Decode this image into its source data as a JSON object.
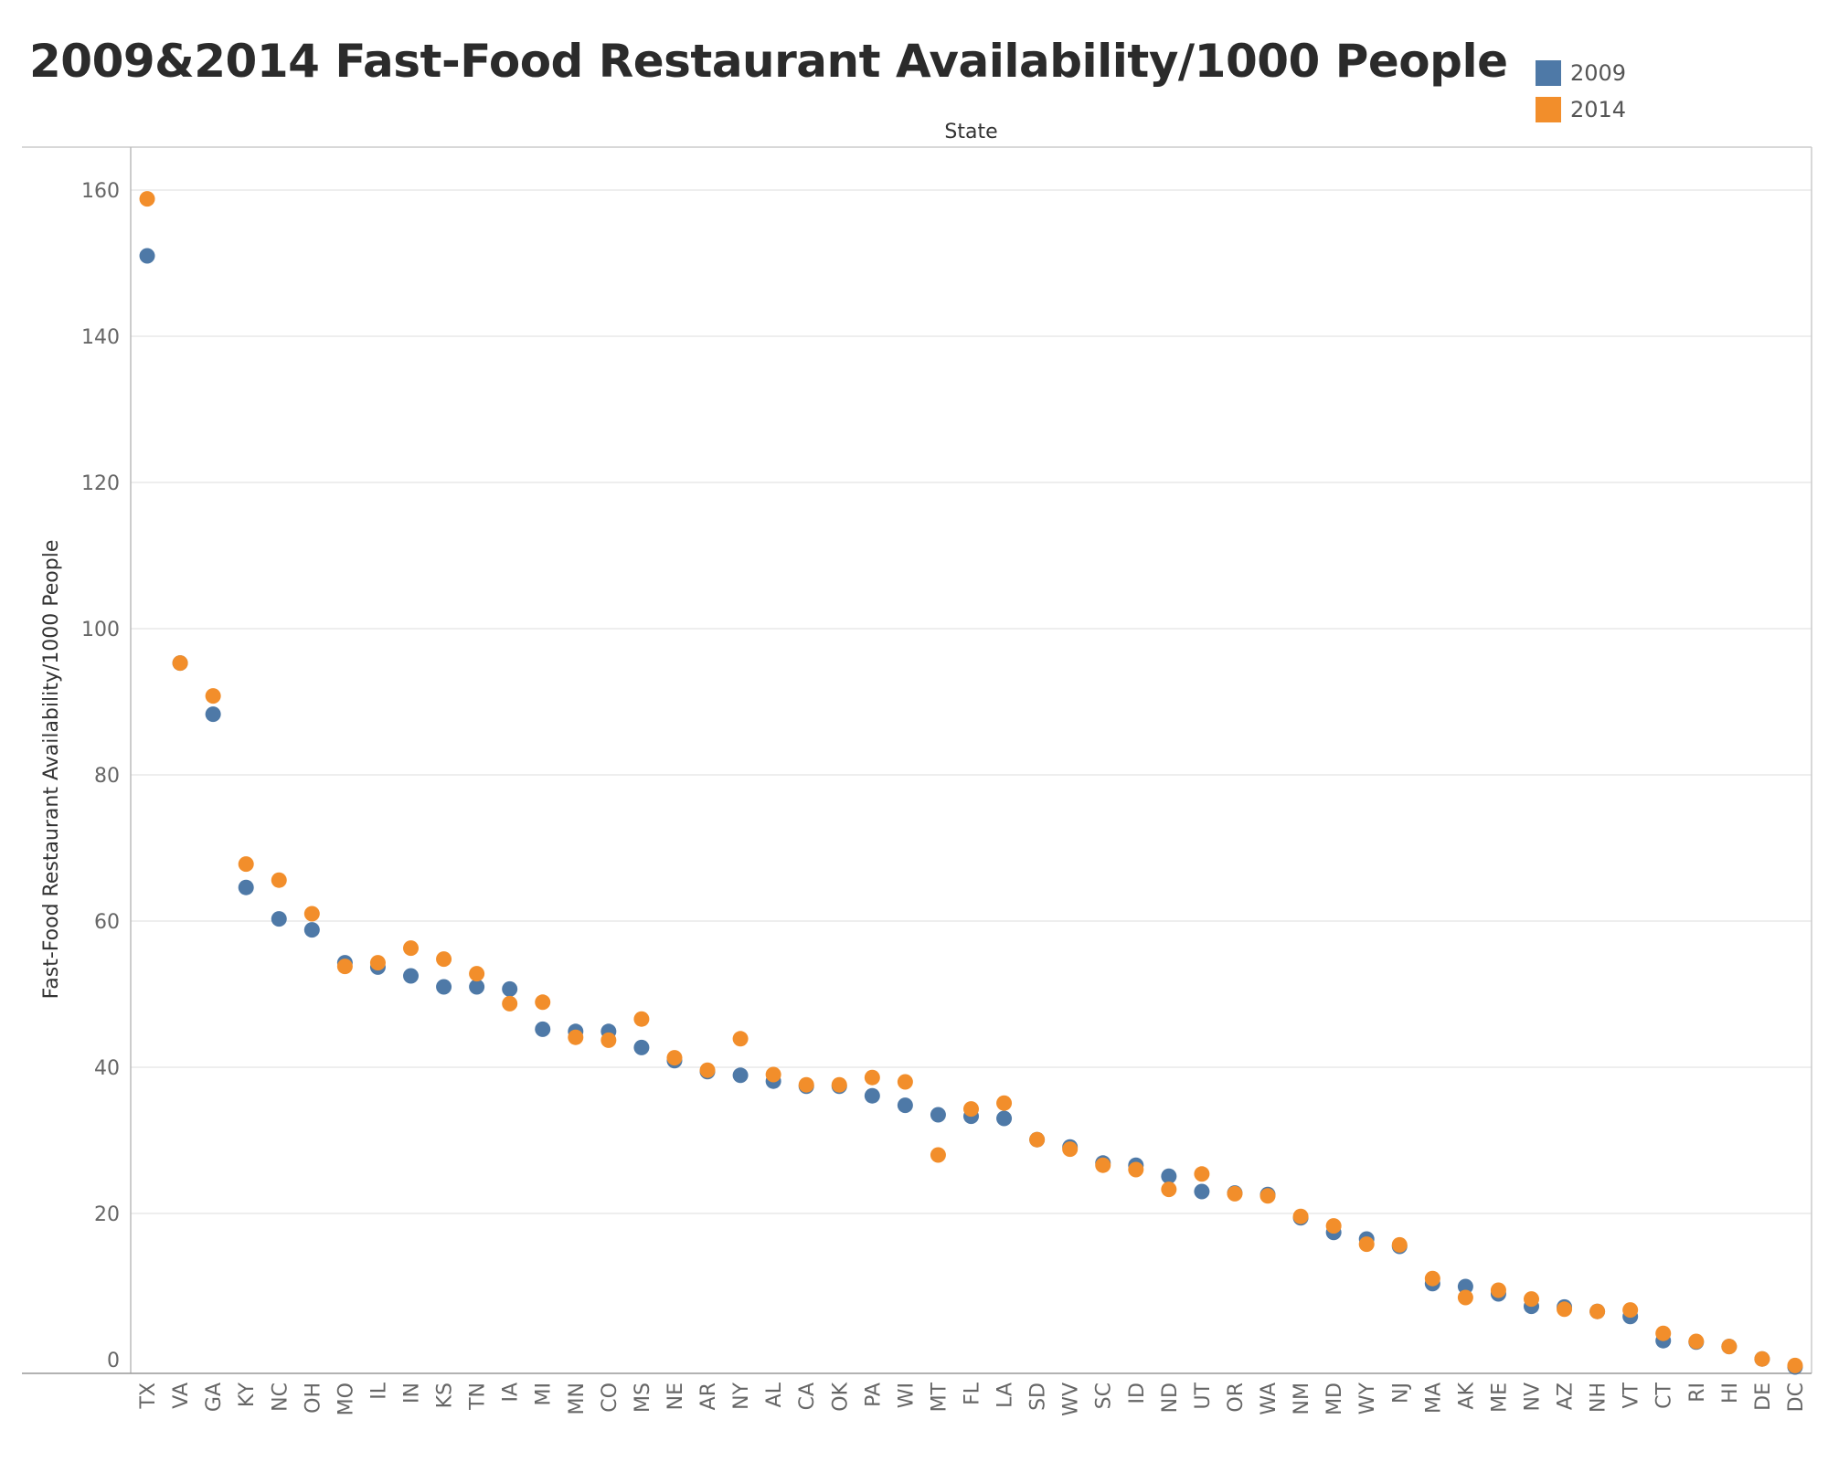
{
  "chart_data": {
    "type": "scatter",
    "title": "2009&2014 Fast-Food Restaurant Availability/1000 People",
    "xlabel": "State",
    "ylabel": "Fast-Food Restaurant Availability/1000 People",
    "ylim": [
      0,
      165
    ],
    "yticks": [
      0,
      20,
      40,
      60,
      80,
      100,
      120,
      140,
      160
    ],
    "grid": true,
    "legend_position": "top-right",
    "categories": [
      "TX",
      "VA",
      "GA",
      "KY",
      "NC",
      "OH",
      "MO",
      "IL",
      "IN",
      "KS",
      "TN",
      "IA",
      "MI",
      "MN",
      "CO",
      "MS",
      "NE",
      "AR",
      "NY",
      "AL",
      "CA",
      "OK",
      "PA",
      "WI",
      "MT",
      "FL",
      "LA",
      "SD",
      "WV",
      "SC",
      "ID",
      "ND",
      "UT",
      "OR",
      "WA",
      "NM",
      "MD",
      "WY",
      "NJ",
      "MA",
      "AK",
      "ME",
      "NV",
      "AZ",
      "NH",
      "VT",
      "CT",
      "RI",
      "HI",
      "DE",
      "DC"
    ],
    "series": [
      {
        "name": "2009",
        "color": "#4e79a7",
        "values": [
          151.0,
          95.3,
          88.3,
          64.6,
          60.3,
          58.8,
          54.3,
          53.7,
          52.5,
          51.0,
          51.0,
          50.7,
          45.2,
          44.9,
          44.9,
          42.7,
          40.9,
          39.4,
          38.9,
          38.1,
          37.4,
          37.4,
          36.1,
          34.8,
          33.5,
          33.3,
          33.0,
          30.1,
          29.1,
          26.9,
          26.6,
          25.1,
          23.0,
          22.8,
          22.6,
          19.4,
          17.4,
          16.5,
          15.5,
          10.4,
          10.0,
          9.0,
          7.3,
          7.2,
          6.6,
          5.9,
          2.6,
          2.4,
          1.8,
          0.1,
          -1.0
        ]
      },
      {
        "name": "2014",
        "color": "#f28e2b",
        "values": [
          158.8,
          95.3,
          90.8,
          67.8,
          65.6,
          61.0,
          53.8,
          54.3,
          56.3,
          54.8,
          52.8,
          48.7,
          48.9,
          44.1,
          43.7,
          46.6,
          41.3,
          39.6,
          43.9,
          39.0,
          37.6,
          37.6,
          38.6,
          38.0,
          28.0,
          34.3,
          35.1,
          30.1,
          28.8,
          26.6,
          26.0,
          23.3,
          25.4,
          22.7,
          22.4,
          19.6,
          18.3,
          15.8,
          15.7,
          11.1,
          8.5,
          9.5,
          8.3,
          6.9,
          6.6,
          6.8,
          3.6,
          2.5,
          1.8,
          0.1,
          -0.8
        ]
      }
    ]
  }
}
